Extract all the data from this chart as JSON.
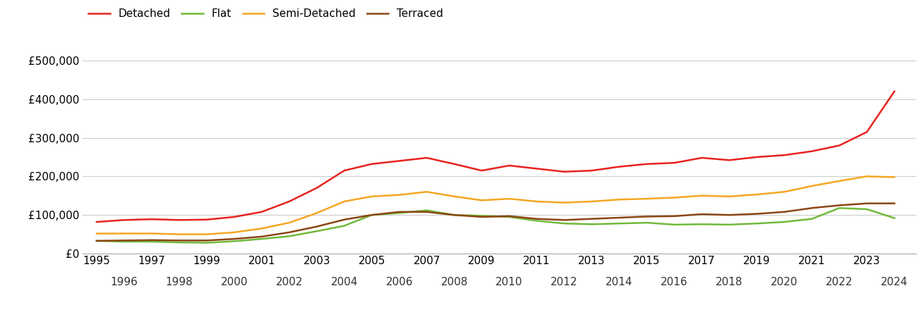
{
  "series": {
    "Detached": {
      "color": "#e8221e",
      "data": {
        "1995": 82000,
        "1996": 87000,
        "1997": 89000,
        "1998": 87000,
        "1999": 88000,
        "2000": 95000,
        "2001": 108000,
        "2002": 135000,
        "2003": 170000,
        "2004": 215000,
        "2005": 232000,
        "2006": 240000,
        "2007": 248000,
        "2008": 232000,
        "2009": 215000,
        "2010": 228000,
        "2011": 220000,
        "2012": 212000,
        "2013": 215000,
        "2014": 225000,
        "2015": 232000,
        "2016": 235000,
        "2017": 248000,
        "2018": 242000,
        "2019": 250000,
        "2020": 255000,
        "2021": 265000,
        "2022": 280000,
        "2023": 315000,
        "2024": 420000
      }
    },
    "Flat": {
      "color": "#72b93a",
      "data": {
        "1995": 33000,
        "1996": 31000,
        "1997": 31000,
        "1998": 29000,
        "1999": 28000,
        "2000": 32000,
        "2001": 38000,
        "2002": 45000,
        "2003": 58000,
        "2004": 72000,
        "2005": 100000,
        "2006": 105000,
        "2007": 112000,
        "2008": 100000,
        "2009": 98000,
        "2010": 95000,
        "2011": 85000,
        "2012": 78000,
        "2013": 76000,
        "2014": 78000,
        "2015": 80000,
        "2016": 75000,
        "2017": 76000,
        "2018": 75000,
        "2019": 78000,
        "2020": 82000,
        "2021": 90000,
        "2022": 118000,
        "2023": 115000,
        "2024": 92000
      }
    },
    "Semi-Detached": {
      "color": "#f5a623",
      "data": {
        "1995": 52000,
        "1996": 52000,
        "1997": 52000,
        "1998": 50000,
        "1999": 50000,
        "2000": 55000,
        "2001": 65000,
        "2002": 80000,
        "2003": 105000,
        "2004": 135000,
        "2005": 148000,
        "2006": 152000,
        "2007": 160000,
        "2008": 148000,
        "2009": 138000,
        "2010": 142000,
        "2011": 135000,
        "2012": 132000,
        "2013": 135000,
        "2014": 140000,
        "2015": 142000,
        "2016": 145000,
        "2017": 150000,
        "2018": 148000,
        "2019": 153000,
        "2020": 160000,
        "2021": 175000,
        "2022": 188000,
        "2023": 200000,
        "2024": 198000
      }
    },
    "Terraced": {
      "color": "#8b4513",
      "data": {
        "1995": 33000,
        "1996": 34000,
        "1997": 35000,
        "1998": 34000,
        "1999": 34000,
        "2000": 38000,
        "2001": 44000,
        "2002": 55000,
        "2003": 70000,
        "2004": 88000,
        "2005": 100000,
        "2006": 108000,
        "2007": 108000,
        "2008": 100000,
        "2009": 95000,
        "2010": 97000,
        "2011": 90000,
        "2012": 87000,
        "2013": 90000,
        "2014": 93000,
        "2015": 96000,
        "2016": 97000,
        "2017": 102000,
        "2018": 100000,
        "2019": 103000,
        "2020": 108000,
        "2021": 118000,
        "2022": 125000,
        "2023": 130000,
        "2024": 130000
      }
    }
  },
  "ylim": [
    0,
    550000
  ],
  "yticks": [
    0,
    100000,
    200000,
    300000,
    400000,
    500000
  ],
  "ytick_labels": [
    "£0",
    "£100,000",
    "£200,000",
    "£300,000",
    "£400,000",
    "£500,000"
  ],
  "background_color": "#ffffff",
  "grid_color": "#cccccc",
  "line_width": 1.8,
  "tick_fontsize": 11,
  "legend_fontsize": 11
}
